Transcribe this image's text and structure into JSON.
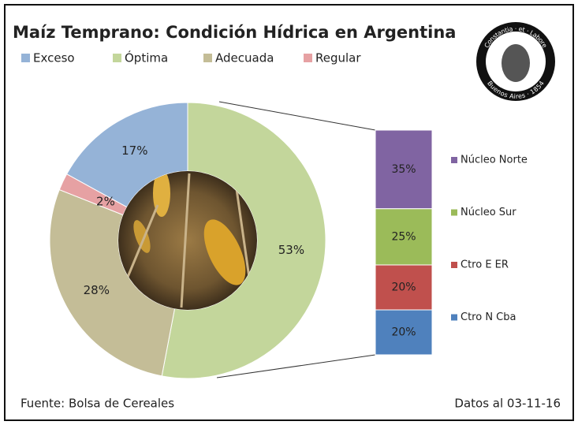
{
  "chart_data": [
    {
      "type": "pie",
      "title": "Maíz Temprano: Condición Hídrica en Argentina",
      "categories": [
        "Exceso",
        "Óptima",
        "Adecuada",
        "Regular"
      ],
      "values": [
        17,
        53,
        28,
        2
      ],
      "value_labels": [
        "17%",
        "53%",
        "28%",
        "2%"
      ],
      "colors": [
        "#95b3d7",
        "#c3d69b",
        "#c4bd97",
        "#e6a1a3"
      ],
      "legend": "top"
    },
    {
      "type": "bar",
      "stacked": true,
      "categories": [
        "Núcleo Norte",
        "Núcleo Sur",
        "Ctro E ER",
        "Ctro N Cba"
      ],
      "values": [
        35,
        25,
        20,
        20
      ],
      "value_labels": [
        "35%",
        "25%",
        "20%",
        "20%"
      ],
      "colors": [
        "#8064a2",
        "#9bbb59",
        "#c0504d",
        "#4f81bd"
      ]
    }
  ],
  "logo": {
    "top": "Constantia · et · Labore",
    "bottom": "Buenos Aires · 1854"
  },
  "footer": {
    "source": "Fuente: Bolsa de Cereales",
    "date": "Datos al 03-11-16"
  }
}
